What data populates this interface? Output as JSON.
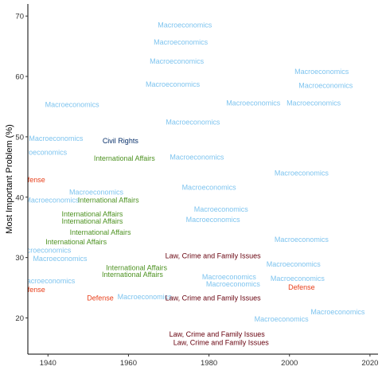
{
  "chart_data": {
    "type": "scatter",
    "title": "",
    "xlabel": "",
    "ylabel": "Most Important Problem (%)",
    "xlim": [
      1935,
      2022
    ],
    "ylim": [
      14,
      72
    ],
    "x_ticks": [
      1940,
      1960,
      1980,
      2000,
      2020
    ],
    "y_ticks": [
      20,
      30,
      40,
      50,
      60,
      70
    ],
    "x_tick_labels": [
      "1940",
      "1960",
      "1980",
      "2000",
      "2020"
    ],
    "y_tick_labels": [
      "20",
      "30",
      "40",
      "50",
      "60",
      "70"
    ],
    "grid": false,
    "legend": "none",
    "category_colors": {
      "Macroeconomics": "#7ec4ef",
      "Civil Rights": "#08306b",
      "International Affairs": "#4d9221",
      "Defense": "#e8401c",
      "Law, Crime and Family Issues": "#67000d"
    },
    "points": [
      {
        "x": 1974,
        "y": 68.5,
        "label": "Macroeconomics"
      },
      {
        "x": 1973,
        "y": 65.7,
        "label": "Macroeconomics"
      },
      {
        "x": 1972,
        "y": 62.5,
        "label": "Macroeconomics"
      },
      {
        "x": 1971,
        "y": 58.7,
        "label": "Macroeconomics"
      },
      {
        "x": 2008,
        "y": 60.8,
        "label": "Macroeconomics"
      },
      {
        "x": 2009,
        "y": 58.5,
        "label": "Macroeconomics"
      },
      {
        "x": 1991,
        "y": 55.6,
        "label": "Macroeconomics"
      },
      {
        "x": 2006,
        "y": 55.6,
        "label": "Macroeconomics"
      },
      {
        "x": 1946,
        "y": 55.3,
        "label": "Macroeconomics"
      },
      {
        "x": 1976,
        "y": 52.4,
        "label": "Macroeconomics"
      },
      {
        "x": 1942,
        "y": 49.7,
        "label": "Macroeconomics"
      },
      {
        "x": 1938,
        "y": 47.4,
        "label": "Macroeconomics"
      },
      {
        "x": 1977,
        "y": 46.6,
        "label": "Macroeconomics"
      },
      {
        "x": 2003,
        "y": 44.0,
        "label": "Macroeconomics"
      },
      {
        "x": 1980,
        "y": 41.6,
        "label": "Macroeconomics"
      },
      {
        "x": 1952,
        "y": 40.8,
        "label": "Macroeconomics"
      },
      {
        "x": 1941,
        "y": 39.5,
        "label": "Macroeconomics"
      },
      {
        "x": 1983,
        "y": 38.0,
        "label": "Macroeconomics"
      },
      {
        "x": 1981,
        "y": 36.3,
        "label": "Macroeconomics"
      },
      {
        "x": 2003,
        "y": 33.0,
        "label": "Macroeconomics"
      },
      {
        "x": 1939,
        "y": 31.2,
        "label": "Macroeconomics"
      },
      {
        "x": 1943,
        "y": 29.8,
        "label": "Macroeconomics"
      },
      {
        "x": 2001,
        "y": 28.9,
        "label": "Macroeconomics"
      },
      {
        "x": 1985,
        "y": 26.8,
        "label": "Macroeconomics"
      },
      {
        "x": 2002,
        "y": 26.5,
        "label": "Macroeconomics"
      },
      {
        "x": 1940,
        "y": 26.1,
        "label": "Macroeconomics"
      },
      {
        "x": 1986,
        "y": 25.6,
        "label": "Macroeconomics"
      },
      {
        "x": 1964,
        "y": 23.5,
        "label": "Macroeconomics"
      },
      {
        "x": 2012,
        "y": 21.0,
        "label": "Macroeconomics"
      },
      {
        "x": 1998,
        "y": 19.8,
        "label": "Macroeconomics"
      },
      {
        "x": 1958,
        "y": 49.3,
        "label": "Civil Rights"
      },
      {
        "x": 1959,
        "y": 46.4,
        "label": "International Affairs"
      },
      {
        "x": 1955,
        "y": 39.5,
        "label": "International Affairs"
      },
      {
        "x": 1951,
        "y": 37.2,
        "label": "International Affairs"
      },
      {
        "x": 1951,
        "y": 36.0,
        "label": "International Affairs"
      },
      {
        "x": 1953,
        "y": 34.2,
        "label": "International Affairs"
      },
      {
        "x": 1947,
        "y": 32.6,
        "label": "International Affairs"
      },
      {
        "x": 1962,
        "y": 28.3,
        "label": "International Affairs"
      },
      {
        "x": 1961,
        "y": 27.2,
        "label": "International Affairs"
      },
      {
        "x": 1936,
        "y": 42.9,
        "label": "Defense"
      },
      {
        "x": 1936,
        "y": 24.7,
        "label": "Defense"
      },
      {
        "x": 1953,
        "y": 23.3,
        "label": "Defense"
      },
      {
        "x": 2003,
        "y": 25.1,
        "label": "Defense"
      },
      {
        "x": 1981,
        "y": 30.3,
        "label": "Law, Crime and Family Issues"
      },
      {
        "x": 1981,
        "y": 23.3,
        "label": "Law, Crime and Family Issues"
      },
      {
        "x": 1982,
        "y": 17.3,
        "label": "Law, Crime and Family Issues"
      },
      {
        "x": 1983,
        "y": 15.9,
        "label": "Law, Crime and Family Issues"
      }
    ]
  }
}
